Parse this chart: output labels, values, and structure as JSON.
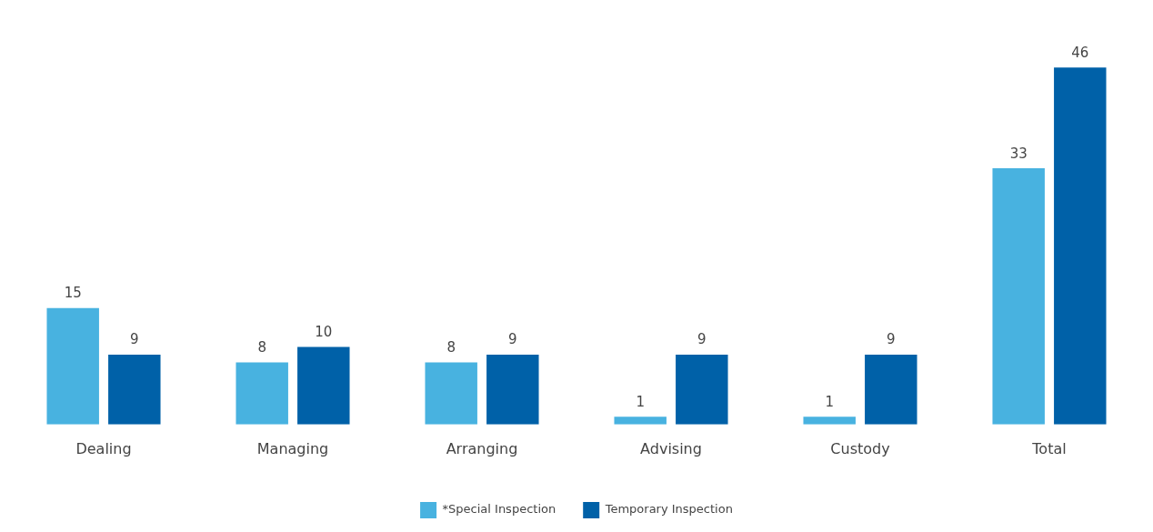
{
  "chart_data": {
    "type": "bar",
    "categories": [
      "Dealing",
      "Managing",
      "Arranging",
      "Advising",
      "Custody",
      "Total"
    ],
    "series": [
      {
        "name": "*Special Inspection",
        "color": "#48b2e0",
        "values": [
          15,
          8,
          8,
          1,
          1,
          33
        ]
      },
      {
        "name": "Temporary Inspection",
        "color": "#0061a8",
        "values": [
          9,
          10,
          9,
          9,
          9,
          46
        ]
      }
    ],
    "data_labels": true,
    "legend": "bottom",
    "grid": false
  }
}
